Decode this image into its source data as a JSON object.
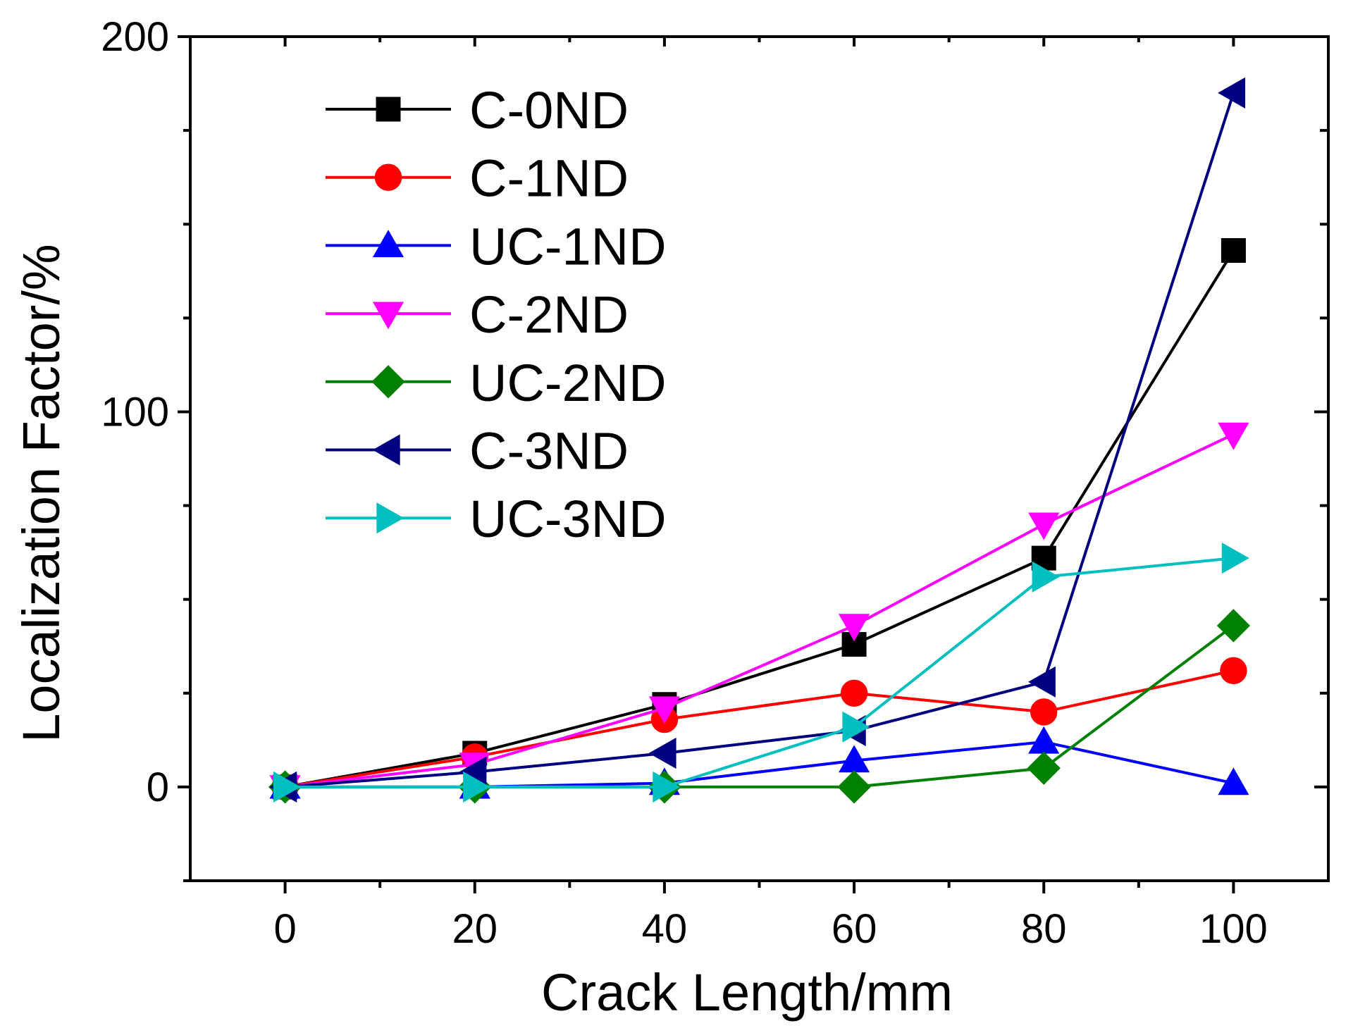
{
  "chart_data": {
    "type": "line",
    "title": "",
    "xlabel": "Crack Length/mm",
    "ylabel": "Localization Factor/%",
    "x": [
      0,
      20,
      40,
      60,
      80,
      100
    ],
    "xlim": [
      -10,
      110
    ],
    "ylim": [
      -25,
      200
    ],
    "xticks": [
      0,
      20,
      40,
      60,
      80,
      100
    ],
    "xticks_minor": [
      10,
      30,
      50,
      70,
      90
    ],
    "yticks": [
      0,
      100,
      200
    ],
    "yticks_minor": [
      -25,
      25,
      50,
      75,
      125,
      150,
      175
    ],
    "grid": false,
    "legend_position": "top-left",
    "series": [
      {
        "name": "C-0ND",
        "color": "#000000",
        "marker": "square",
        "values": [
          0,
          9,
          22,
          38,
          61,
          143
        ]
      },
      {
        "name": "C-1ND",
        "color": "#ff0000",
        "marker": "circle",
        "values": [
          0,
          8,
          18,
          25,
          20,
          31
        ]
      },
      {
        "name": "UC-1ND",
        "color": "#0000ff",
        "marker": "triangle-up",
        "values": [
          0,
          0,
          1,
          7,
          12,
          1
        ]
      },
      {
        "name": "C-2ND",
        "color": "#ff00ff",
        "marker": "triangle-down",
        "values": [
          0,
          6,
          21,
          43,
          70,
          94
        ]
      },
      {
        "name": "UC-2ND",
        "color": "#008000",
        "marker": "diamond",
        "values": [
          0,
          0,
          0,
          0,
          5,
          43
        ]
      },
      {
        "name": "C-3ND",
        "color": "#000080",
        "marker": "triangle-left",
        "values": [
          0,
          4,
          9,
          15,
          28,
          185
        ]
      },
      {
        "name": "UC-3ND",
        "color": "#00bfbf",
        "marker": "triangle-right",
        "values": [
          0,
          0,
          0,
          16,
          56,
          61
        ]
      }
    ]
  }
}
